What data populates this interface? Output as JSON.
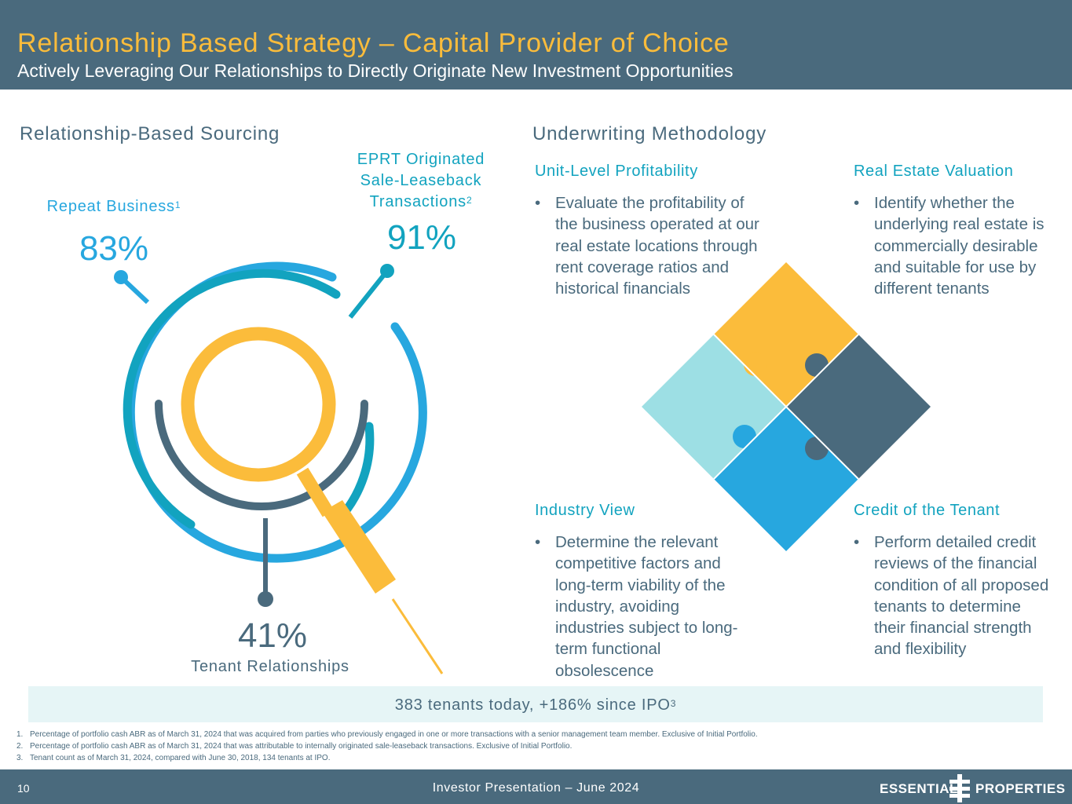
{
  "header": {
    "title": "Relationship Based Strategy – Capital Provider of Choice",
    "subtitle": "Actively Leveraging Our Relationships to Directly Originate New Investment Opportunities"
  },
  "sourcing": {
    "title": "Relationship-Based Sourcing",
    "repeat": {
      "label": "Repeat Business",
      "sup": "1",
      "value": "83%"
    },
    "eprt": {
      "line1": "EPRT Originated",
      "line2": "Sale-Leaseback",
      "line3": "Transactions",
      "sup": "2",
      "value": "91%"
    },
    "tenant": {
      "value": "41%",
      "label": "Tenant Relationships"
    }
  },
  "underwriting": {
    "title": "Underwriting Methodology",
    "cards": [
      {
        "heading": "Unit-Level Profitability",
        "text": "Evaluate the profitability of the business operated at our real estate locations through rent coverage ratios and historical financials"
      },
      {
        "heading": "Real Estate Valuation",
        "text": "Identify whether the underlying real estate is commercially desirable and suitable for use by different tenants"
      },
      {
        "heading": "Industry View",
        "text": "Determine the relevant competitive factors and long-term viability of the industry, avoiding industries subject to long-term functional obsolescence"
      },
      {
        "heading": "Credit of the Tenant",
        "text": "Perform detailed credit reviews of the financial condition of all proposed tenants to determine their financial strength and flexibility"
      }
    ]
  },
  "banner": {
    "text": "383 tenants today, +186% since IPO",
    "sup": "3"
  },
  "footnotes": [
    {
      "num": "1.",
      "text": "Percentage of portfolio cash ABR as of March 31, 2024 that was acquired from parties who previously engaged in one or more transactions with a senior management team member. Exclusive of Initial Portfolio."
    },
    {
      "num": "2.",
      "text": "Percentage of portfolio cash ABR as of March 31, 2024 that was attributable to internally originated sale-leaseback transactions. Exclusive of Initial Portfolio."
    },
    {
      "num": "3.",
      "text": "Tenant count as of March 31, 2024, compared with June 30, 2018, 134 tenants at IPO."
    }
  ],
  "footer": {
    "page": "10",
    "text": "Investor Presentation – June 2024",
    "logo_left": "ESSENTIAL",
    "logo_right": "PROPERTIES"
  },
  "colors": {
    "navy": "#4a6a7d",
    "gold": "#fbbc3b",
    "blue": "#27a7df",
    "teal": "#12a3bf",
    "light_teal": "#9ddfe4",
    "banner_bg": "#e6f5f6"
  },
  "icons": [
    "magnifier-target-graphic",
    "puzzle-diamond-graphic",
    "essential-properties-logo-mark"
  ]
}
